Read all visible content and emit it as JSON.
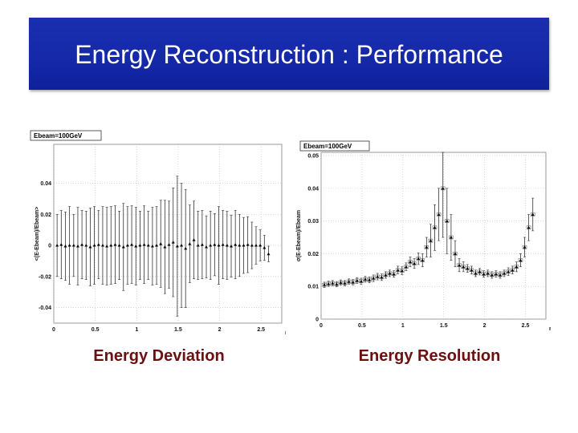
{
  "slide": {
    "title": "Energy Reconstruction : Performance",
    "left_caption": "Energy Deviation",
    "right_caption": "Energy Resolution"
  },
  "colors": {
    "title_bg": "#1428a8",
    "caption": "#6b1010"
  },
  "chart_data": [
    {
      "type": "scatter",
      "title": "Ebeam=100GeV",
      "xlabel": "η",
      "ylabel": "<(E-Ebeam)/Ebeam>",
      "xlim": [
        0,
        2.75
      ],
      "ylim": [
        -0.05,
        0.065
      ],
      "xticks": [
        "0",
        "0.5",
        "1",
        "1.5",
        "2",
        "2.5"
      ],
      "xtick_values": [
        0,
        0.5,
        1,
        1.5,
        2,
        2.5
      ],
      "yticks": [
        "0.04",
        "0.02",
        "0",
        "-0.02",
        "-0.04"
      ],
      "ytick_values": [
        0.04,
        0.02,
        0,
        -0.02,
        -0.04
      ],
      "x": [
        0.04,
        0.09,
        0.14,
        0.19,
        0.24,
        0.29,
        0.34,
        0.39,
        0.44,
        0.49,
        0.54,
        0.59,
        0.64,
        0.69,
        0.74,
        0.79,
        0.84,
        0.89,
        0.94,
        0.99,
        1.04,
        1.09,
        1.14,
        1.19,
        1.24,
        1.29,
        1.34,
        1.39,
        1.44,
        1.49,
        1.54,
        1.59,
        1.64,
        1.69,
        1.74,
        1.79,
        1.84,
        1.89,
        1.94,
        1.99,
        2.04,
        2.09,
        2.14,
        2.19,
        2.24,
        2.29,
        2.34,
        2.39,
        2.44,
        2.49,
        2.54,
        2.59
      ],
      "values": [
        0.0,
        0.0005,
        -0.0005,
        0.0,
        0.0,
        -0.0005,
        0.0005,
        0.0,
        -0.001,
        0.0,
        0.0005,
        0.0,
        -0.0005,
        0.0,
        0.0005,
        0.0,
        -0.001,
        0.0,
        0.0005,
        -0.0005,
        0.0,
        0.0005,
        0.0,
        -0.0005,
        0.0,
        0.001,
        -0.001,
        0.0005,
        0.002,
        -0.0005,
        0.0,
        -0.002,
        0.001,
        0.0035,
        0.0,
        0.0005,
        -0.001,
        0.0,
        0.0005,
        0.0,
        0.0005,
        0.0,
        -0.0005,
        0.0005,
        0.0,
        0.0,
        0.0005,
        0.0,
        0.0,
        0.0,
        -0.0015,
        -0.0055
      ],
      "errors": [
        0.02,
        0.022,
        0.022,
        0.025,
        0.02,
        0.025,
        0.022,
        0.022,
        0.025,
        0.025,
        0.022,
        0.025,
        0.025,
        0.025,
        0.025,
        0.022,
        0.028,
        0.025,
        0.025,
        0.025,
        0.022,
        0.025,
        0.022,
        0.025,
        0.025,
        0.028,
        0.03,
        0.028,
        0.035,
        0.045,
        0.04,
        0.038,
        0.025,
        0.025,
        0.022,
        0.022,
        0.02,
        0.022,
        0.02,
        0.025,
        0.022,
        0.022,
        0.02,
        0.022,
        0.02,
        0.018,
        0.018,
        0.015,
        0.012,
        0.01,
        0.008,
        0.005
      ]
    },
    {
      "type": "scatter",
      "title": "Ebeam=100GeV",
      "xlabel": "η",
      "ylabel": "σ(E-Ebeam)/Ebeam",
      "xlim": [
        0,
        2.75
      ],
      "ylim": [
        0,
        0.051
      ],
      "xticks": [
        "0",
        "0.5",
        "1",
        "1.5",
        "2",
        "2.5"
      ],
      "xtick_values": [
        0,
        0.5,
        1,
        1.5,
        2,
        2.5
      ],
      "yticks": [
        "0.05",
        "0.04",
        "0.03",
        "0.02",
        "0.01",
        "0"
      ],
      "ytick_values": [
        0.05,
        0.04,
        0.03,
        0.02,
        0.01,
        0
      ],
      "x": [
        0.04,
        0.09,
        0.14,
        0.19,
        0.24,
        0.29,
        0.34,
        0.39,
        0.44,
        0.49,
        0.54,
        0.59,
        0.64,
        0.69,
        0.74,
        0.79,
        0.84,
        0.89,
        0.94,
        0.99,
        1.04,
        1.09,
        1.14,
        1.19,
        1.24,
        1.29,
        1.34,
        1.39,
        1.44,
        1.49,
        1.54,
        1.59,
        1.64,
        1.69,
        1.74,
        1.79,
        1.84,
        1.89,
        1.94,
        1.99,
        2.04,
        2.09,
        2.14,
        2.19,
        2.24,
        2.29,
        2.34,
        2.39,
        2.44,
        2.49,
        2.54,
        2.59
      ],
      "values": [
        0.0105,
        0.0108,
        0.011,
        0.0107,
        0.0112,
        0.011,
        0.0115,
        0.0113,
        0.0118,
        0.0116,
        0.0122,
        0.012,
        0.0125,
        0.013,
        0.0128,
        0.0135,
        0.014,
        0.0138,
        0.015,
        0.0148,
        0.016,
        0.0175,
        0.017,
        0.0185,
        0.018,
        0.022,
        0.024,
        0.028,
        0.032,
        0.04,
        0.03,
        0.025,
        0.02,
        0.0165,
        0.016,
        0.0155,
        0.015,
        0.014,
        0.0145,
        0.0138,
        0.014,
        0.0135,
        0.0138,
        0.0135,
        0.014,
        0.0145,
        0.015,
        0.016,
        0.018,
        0.022,
        0.028,
        0.032
      ],
      "errors": [
        0.0008,
        0.0008,
        0.0008,
        0.0008,
        0.0008,
        0.0008,
        0.0008,
        0.0008,
        0.0009,
        0.0009,
        0.0009,
        0.0009,
        0.001,
        0.001,
        0.001,
        0.001,
        0.001,
        0.001,
        0.0012,
        0.0012,
        0.0012,
        0.0015,
        0.0015,
        0.0018,
        0.002,
        0.003,
        0.005,
        0.007,
        0.008,
        0.015,
        0.01,
        0.007,
        0.004,
        0.002,
        0.0015,
        0.0012,
        0.0012,
        0.001,
        0.001,
        0.001,
        0.001,
        0.001,
        0.001,
        0.001,
        0.001,
        0.0012,
        0.0012,
        0.0015,
        0.002,
        0.003,
        0.004,
        0.005
      ]
    }
  ]
}
